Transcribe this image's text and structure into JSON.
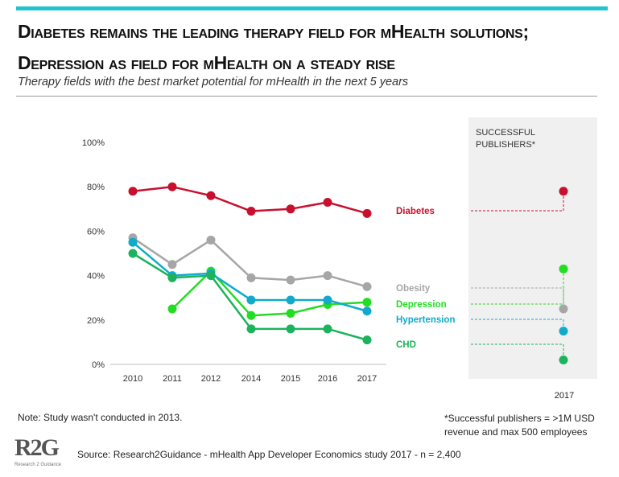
{
  "header": {
    "title": "Diabetes remains the leading therapy field for mHealth solutions; Depression as field for mHealth on a steady rise",
    "subtitle": "Therapy fields with the best market potential for mHealth in the next 5 years"
  },
  "chart_data": {
    "type": "line",
    "categories": [
      "2010",
      "2011",
      "2012",
      "2014",
      "2015",
      "2016",
      "2017"
    ],
    "ylim": [
      0,
      100
    ],
    "yticks": [
      "0%",
      "20%",
      "40%",
      "60%",
      "80%",
      "100%"
    ],
    "yticks_values": [
      0,
      20,
      40,
      60,
      80,
      100
    ],
    "series": [
      {
        "name": "Diabetes",
        "color": "#c8102e",
        "values": [
          78,
          80,
          76,
          69,
          70,
          73,
          68
        ]
      },
      {
        "name": "Obesity",
        "color": "#a6a6a6",
        "values": [
          57,
          45,
          56,
          39,
          38,
          40,
          35
        ]
      },
      {
        "name": "Depression",
        "color": "#22dd22",
        "values": [
          null,
          25,
          42,
          22,
          23,
          27,
          28
        ]
      },
      {
        "name": "Hypertension",
        "color": "#11aacc",
        "values": [
          55,
          40,
          41,
          29,
          29,
          29,
          24
        ]
      },
      {
        "name": "CHD",
        "color": "#1bb35c",
        "values": [
          50,
          39,
          40,
          16,
          16,
          16,
          11
        ]
      }
    ],
    "successful_publishers": {
      "label": "SUCCESSFUL PUBLISHERS*",
      "category": "2017",
      "values": [
        {
          "name": "Diabetes",
          "value": 78
        },
        {
          "name": "Depression",
          "value": 43
        },
        {
          "name": "Obesity",
          "value": 25
        },
        {
          "name": "Hypertension",
          "value": 15
        },
        {
          "name": "CHD",
          "value": 2
        }
      ]
    }
  },
  "footer": {
    "note": "Note: Study wasn't conducted in 2013.",
    "footnote_line1": "*Successful publishers = >1M USD",
    "footnote_line2": "revenue and max 500 employees",
    "source": "Source: Research2Guidance - mHealth App Developer Economics study 2017 - n = 2,400",
    "logo_mark": "R2G",
    "logo_tagline": "Research 2 Guidance"
  }
}
